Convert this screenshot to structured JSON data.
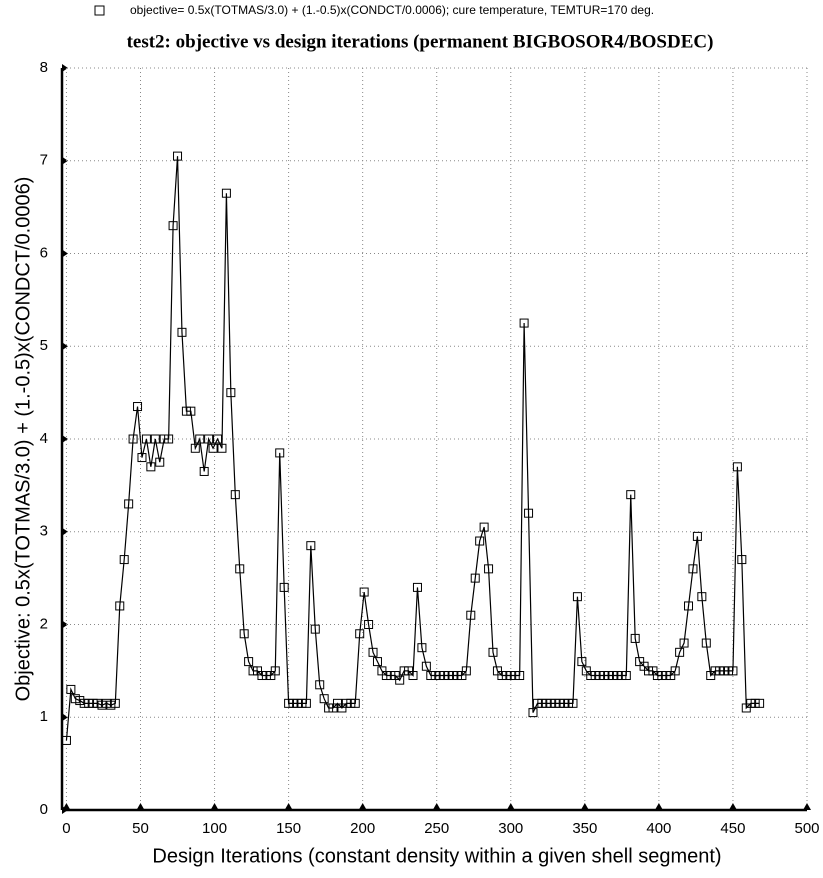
{
  "chart_data": {
    "type": "line",
    "title": "test2: objective vs design iterations (permanent BIGBOSOR4/BOSDEC)",
    "x_label": "Design Iterations (constant density within a given shell segment)",
    "y_label": "Objective: 0.5x(TOTMAS/3.0) + (1.-0.5)x(CONDCT/0.0006)",
    "xlim": [
      -3,
      500
    ],
    "xticks": [
      0,
      50,
      100,
      150,
      200,
      250,
      300,
      350,
      400,
      450,
      500
    ],
    "ylim": [
      0,
      8
    ],
    "yticks": [
      0,
      1,
      2,
      3,
      4,
      5,
      6,
      7,
      8
    ],
    "grid": true,
    "legend": "top",
    "x": [
      0,
      3,
      6,
      9,
      12,
      15,
      18,
      21,
      24,
      27,
      30,
      33,
      36,
      39,
      42,
      45,
      48,
      51,
      54,
      57,
      60,
      63,
      66,
      69,
      72,
      75,
      78,
      81,
      84,
      87,
      90,
      93,
      96,
      99,
      102,
      105,
      108,
      111,
      114,
      117,
      120,
      123,
      126,
      129,
      132,
      135,
      138,
      141,
      144,
      147,
      150,
      153,
      156,
      159,
      162,
      165,
      168,
      171,
      174,
      177,
      180,
      183,
      186,
      189,
      192,
      195,
      198,
      201,
      204,
      207,
      210,
      213,
      216,
      219,
      222,
      225,
      228,
      231,
      234,
      237,
      240,
      243,
      246,
      249,
      252,
      255,
      258,
      261,
      264,
      267,
      270,
      273,
      276,
      279,
      282,
      285,
      288,
      291,
      294,
      297,
      300,
      303,
      306,
      309,
      312,
      315,
      318,
      321,
      324,
      327,
      330,
      333,
      336,
      339,
      342,
      345,
      348,
      351,
      354,
      357,
      360,
      363,
      366,
      369,
      372,
      375,
      378,
      381,
      384,
      387,
      390,
      393,
      396,
      399,
      402,
      405,
      408,
      411,
      414,
      417,
      420,
      423,
      426,
      429,
      432,
      435,
      438,
      441,
      444,
      447,
      450,
      453,
      456,
      459,
      462,
      465,
      468
    ],
    "series": [
      {
        "name": "objective= 0.5x(TOTMAS/3.0) + (1.-0.5)x(CONDCT/0.0006); cure temperature, TEMTUR=170 deg.",
        "color": "#000000",
        "values": [
          0.75,
          1.3,
          1.2,
          1.18,
          1.15,
          1.15,
          1.15,
          1.15,
          1.13,
          1.15,
          1.13,
          1.15,
          2.2,
          2.7,
          3.3,
          4.0,
          4.35,
          3.8,
          4.0,
          3.7,
          4.0,
          3.75,
          4.0,
          4.0,
          6.3,
          7.05,
          5.15,
          4.3,
          4.3,
          3.9,
          4.0,
          3.65,
          4.0,
          3.9,
          4.0,
          3.9,
          6.65,
          4.5,
          3.4,
          2.6,
          1.9,
          1.6,
          1.5,
          1.5,
          1.45,
          1.45,
          1.45,
          1.5,
          3.85,
          2.4,
          1.15,
          1.15,
          1.15,
          1.15,
          1.15,
          2.85,
          1.95,
          1.35,
          1.2,
          1.1,
          1.1,
          1.15,
          1.1,
          1.15,
          1.15,
          1.15,
          1.9,
          2.35,
          2.0,
          1.7,
          1.6,
          1.5,
          1.45,
          1.45,
          1.45,
          1.4,
          1.5,
          1.5,
          1.45,
          2.4,
          1.75,
          1.55,
          1.45,
          1.45,
          1.45,
          1.45,
          1.45,
          1.45,
          1.45,
          1.45,
          1.5,
          2.1,
          2.5,
          2.9,
          3.05,
          2.6,
          1.7,
          1.5,
          1.45,
          1.45,
          1.45,
          1.45,
          1.45,
          5.25,
          3.2,
          1.05,
          1.15,
          1.15,
          1.15,
          1.15,
          1.15,
          1.15,
          1.15,
          1.15,
          1.15,
          2.3,
          1.6,
          1.5,
          1.45,
          1.45,
          1.45,
          1.45,
          1.45,
          1.45,
          1.45,
          1.45,
          1.45,
          3.4,
          1.85,
          1.6,
          1.55,
          1.5,
          1.5,
          1.45,
          1.45,
          1.45,
          1.45,
          1.5,
          1.7,
          1.8,
          2.2,
          2.6,
          2.95,
          2.3,
          1.8,
          1.45,
          1.5,
          1.5,
          1.5,
          1.5,
          1.5,
          3.7,
          2.7,
          1.1,
          1.15,
          1.15,
          1.15
        ]
      }
    ]
  }
}
